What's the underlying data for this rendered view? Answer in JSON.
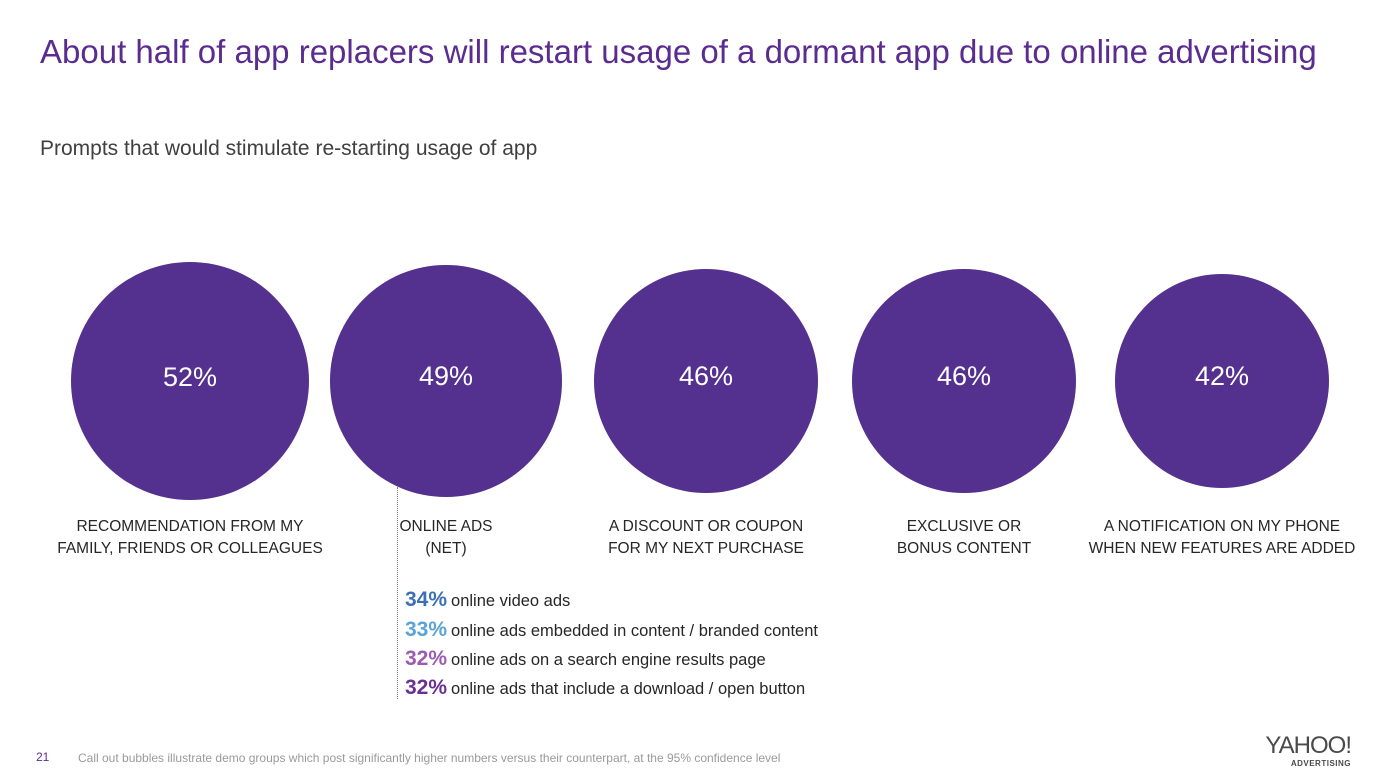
{
  "title": "About half of app replacers will restart usage of a dormant app due to online advertising",
  "subtitle": "Prompts that would stimulate re-starting usage of app",
  "chart_data": {
    "type": "bubble",
    "title": "About half of app replacers will restart usage of a dormant app due to online advertising",
    "subtitle": "Prompts that would stimulate re-starting usage of app",
    "categories": [
      "RECOMMENDATION FROM MY FAMILY, FRIENDS OR COLLEAGUES",
      "ONLINE ADS (NET)",
      "A DISCOUNT OR COUPON FOR MY NEXT PURCHASE",
      "EXCLUSIVE OR BONUS CONTENT",
      "A NOTIFICATION ON MY PHONE WHEN NEW FEATURES ARE ADDED"
    ],
    "values": [
      52,
      49,
      46,
      46,
      42
    ],
    "bubbles": [
      {
        "value_label": "52%",
        "label": "RECOMMENDATION FROM MY\nFAMILY, FRIENDS OR COLLEAGUES"
      },
      {
        "value_label": "49%",
        "label": "ONLINE ADS\n(NET)"
      },
      {
        "value_label": "46%",
        "label": "A DISCOUNT OR COUPON\nFOR MY NEXT PURCHASE"
      },
      {
        "value_label": "46%",
        "label": "EXCLUSIVE OR\nBONUS CONTENT"
      },
      {
        "value_label": "42%",
        "label": "A NOTIFICATION ON MY PHONE\nWHEN NEW FEATURES ARE ADDED"
      }
    ],
    "bubble_color": "#54318f",
    "online_ads_breakdown": [
      {
        "pct": "34%",
        "value": 34,
        "label": "online video ads",
        "color": "#3d6fb5"
      },
      {
        "pct": "33%",
        "value": 33,
        "label": "online ads embedded in content / branded content",
        "color": "#5aa3d6"
      },
      {
        "pct": "32%",
        "value": 32,
        "label": "online ads on a search engine results page",
        "color": "#9b5bb5"
      },
      {
        "pct": "32%",
        "value": 32,
        "label": "online ads that include a download / open button",
        "color": "#6a3096"
      }
    ]
  },
  "footer": {
    "page_number": "21",
    "note": "Call out bubbles illustrate demo groups which post significantly higher numbers versus their counterpart, at the 95% confidence level",
    "logo_main": "YAHOO!",
    "logo_sub": "ADVERTISING"
  }
}
